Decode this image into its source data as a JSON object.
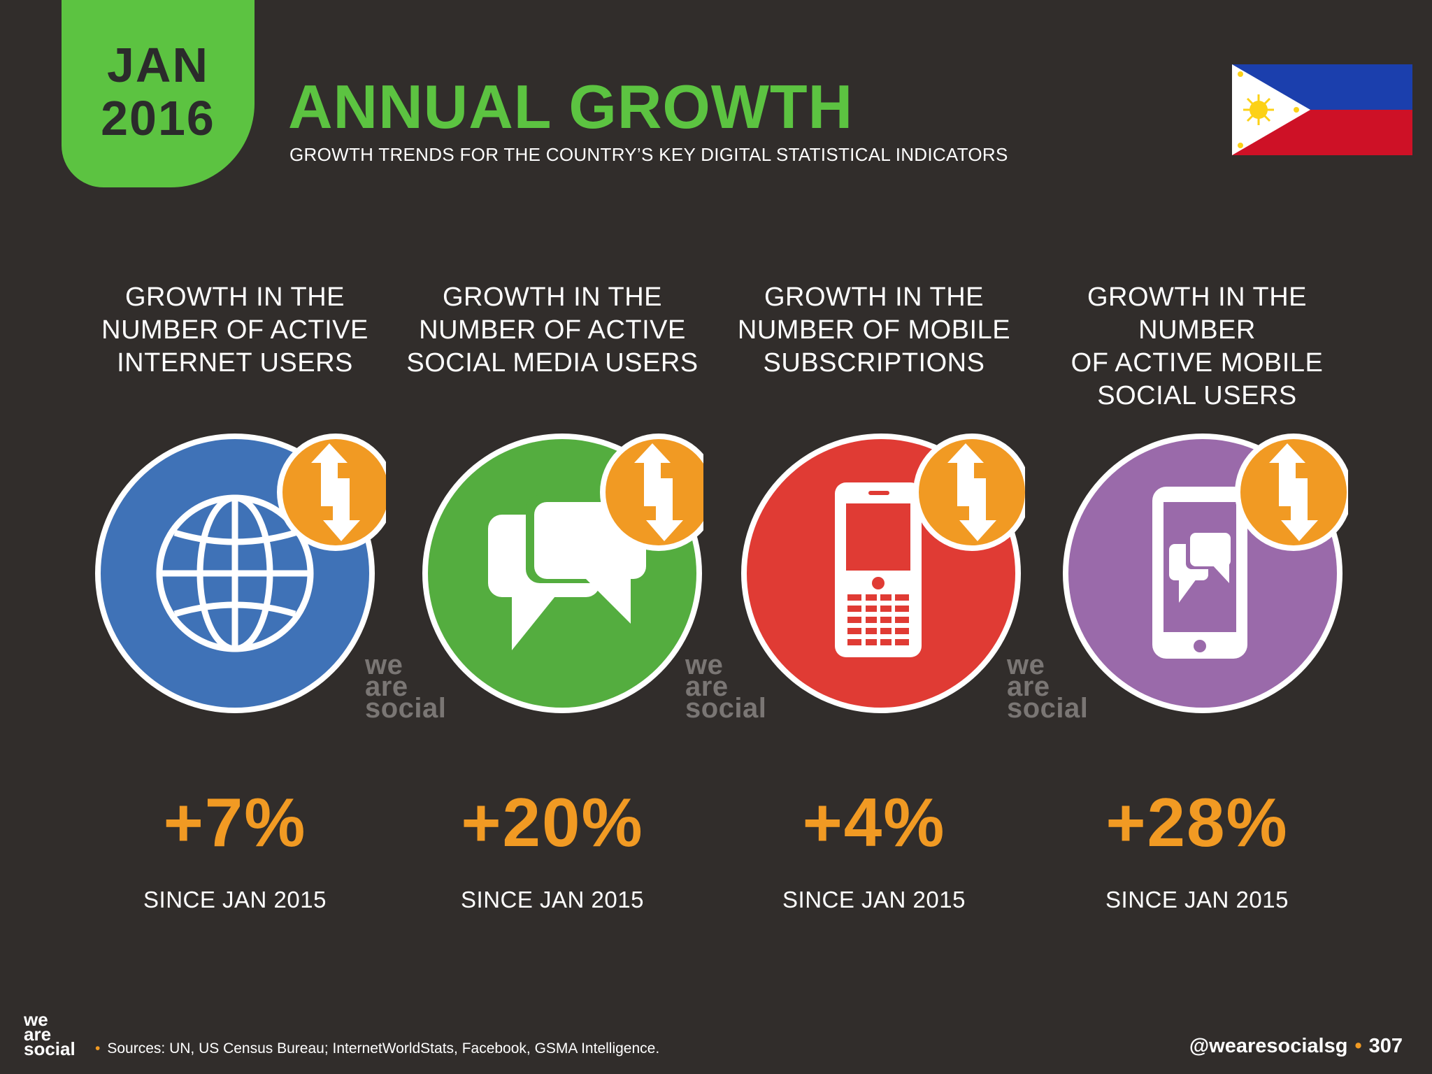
{
  "header": {
    "month": "JAN",
    "year": "2016",
    "title": "ANNUAL GROWTH",
    "subtitle": "GROWTH TRENDS FOR THE COUNTRY’S KEY DIGITAL STATISTICAL INDICATORS"
  },
  "flag_icon": "philippines-flag-icon",
  "indicators": [
    {
      "heading_lines": [
        "GROWTH IN THE",
        "NUMBER OF ACTIVE",
        "INTERNET USERS"
      ],
      "value": "+7%",
      "since": "SINCE JAN 2015",
      "icon": "globe-icon",
      "color": "#3f72b7"
    },
    {
      "heading_lines": [
        "GROWTH IN THE",
        "NUMBER OF ACTIVE",
        "SOCIAL MEDIA USERS"
      ],
      "value": "+20%",
      "since": "SINCE JAN 2015",
      "icon": "chat-bubbles-icon",
      "color": "#54ad3f"
    },
    {
      "heading_lines": [
        "GROWTH IN THE",
        "NUMBER OF MOBILE",
        "SUBSCRIPTIONS"
      ],
      "value": "+4%",
      "since": "SINCE JAN 2015",
      "icon": "mobile-phone-icon",
      "color": "#e03b34"
    },
    {
      "heading_lines": [
        "GROWTH IN THE NUMBER",
        "OF ACTIVE MOBILE",
        "SOCIAL USERS"
      ],
      "value": "+28%",
      "since": "SINCE JAN 2015",
      "icon": "smartphone-chat-icon",
      "color": "#9a6aaa"
    }
  ],
  "watermark": [
    "we",
    "are",
    "social"
  ],
  "footer": {
    "logo": [
      "we",
      "are",
      "social"
    ],
    "sources": "Sources: UN, US Census Bureau; InternetWorldStats, Facebook, GSMA Intelligence.",
    "handle": "@wearesocialsg",
    "page_number": "307"
  },
  "colors": {
    "accent_green": "#5cc341",
    "accent_orange": "#f19a23",
    "background": "#312d2b"
  }
}
